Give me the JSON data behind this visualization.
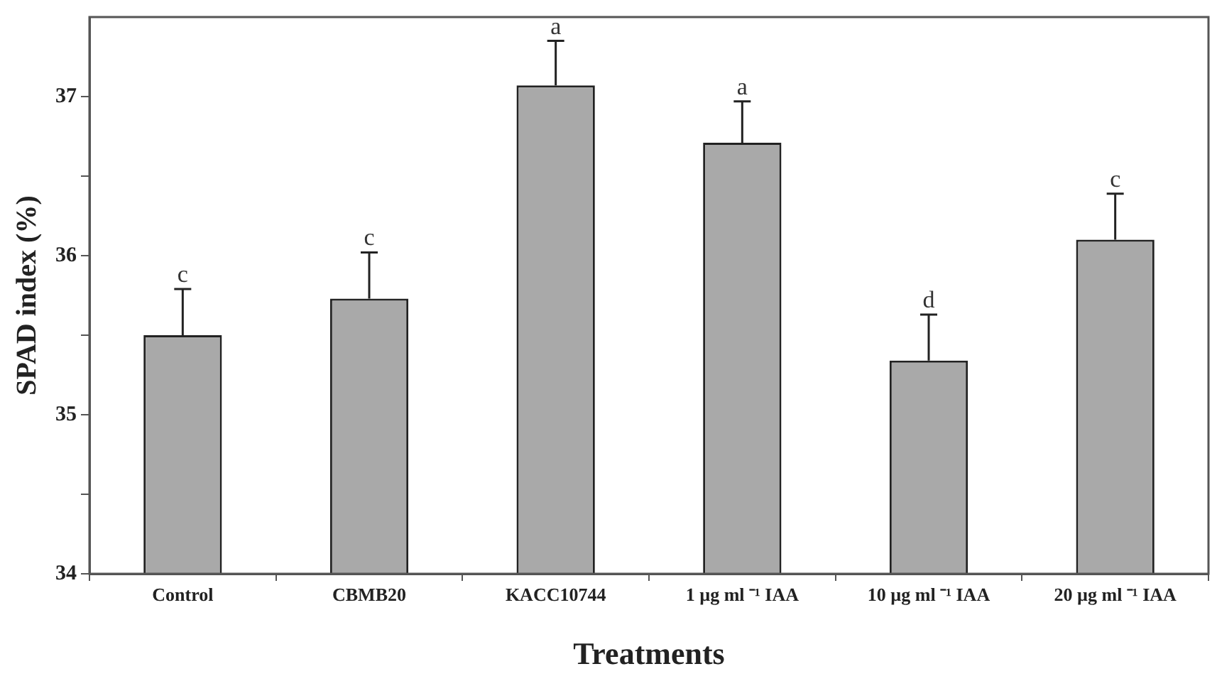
{
  "chart_data": {
    "type": "bar",
    "xlabel": "Treatments",
    "ylabel": "SPAD index (%)",
    "categories": [
      "Control",
      "CBMB20",
      "KACC10744",
      "1 µg ml ⁻¹ IAA",
      "10 µg ml ⁻¹ IAA",
      "20 µg ml ⁻¹ IAA"
    ],
    "values": [
      35.5,
      35.73,
      37.07,
      36.71,
      35.34,
      36.1
    ],
    "errors": [
      [
        35.5,
        35.79
      ],
      [
        35.73,
        36.02
      ],
      [
        37.07,
        37.35
      ],
      [
        36.71,
        36.97
      ],
      [
        35.34,
        35.63
      ],
      [
        36.1,
        36.39
      ]
    ],
    "color": "#a9a9a9",
    "ylim": [
      34,
      37.5
    ],
    "yticks": [
      34,
      {
        "value": 34.5,
        "label": null
      },
      35,
      {
        "value": 35.5,
        "label": null
      },
      36,
      {
        "value": 36.5,
        "label": null
      },
      37
    ],
    "grid": false,
    "legend": false,
    "annotations": [
      {
        "text": "c",
        "x": "Control",
        "y": 35.79
      },
      {
        "text": "c",
        "x": "CBMB20",
        "y": 36.02
      },
      {
        "text": "a",
        "x": "KACC10744",
        "y": 37.35
      },
      {
        "text": "a",
        "x": "1 µg ml ⁻¹ IAA",
        "y": 36.97
      },
      {
        "text": "d",
        "x": "10 µg ml ⁻¹ IAA",
        "y": 35.63
      },
      {
        "text": "c",
        "x": "20 µg ml ⁻¹ IAA",
        "y": 36.39
      }
    ]
  }
}
